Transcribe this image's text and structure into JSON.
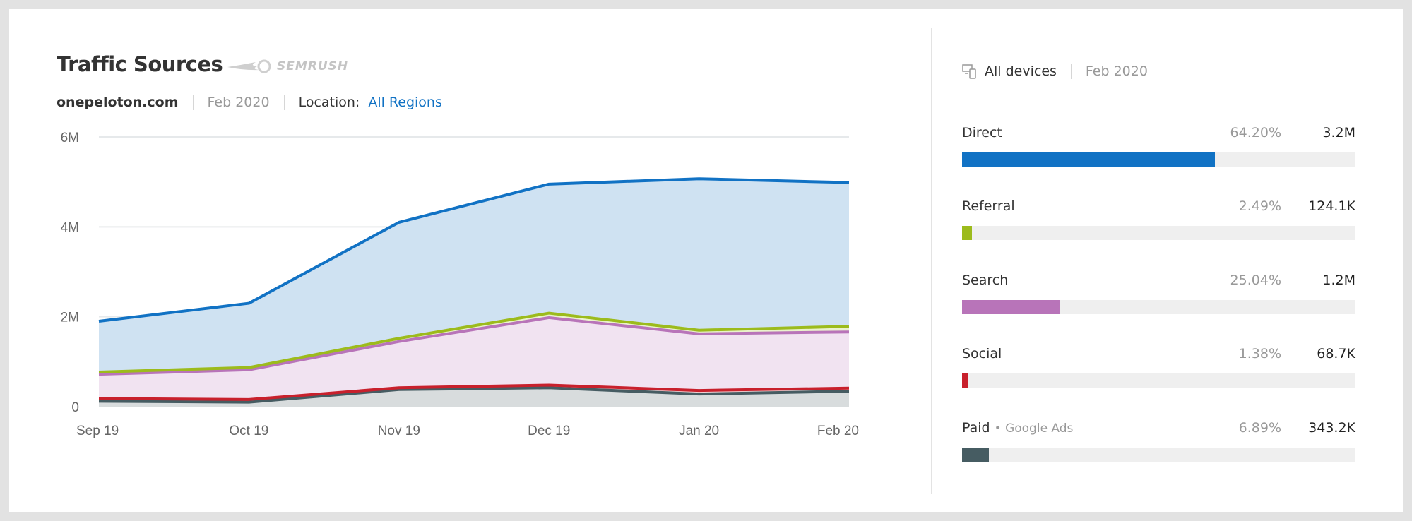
{
  "header": {
    "title": "Traffic Sources",
    "logo_text": "SEMRUSH",
    "domain": "onepeloton.com",
    "date": "Feb 2020",
    "location_label": "Location:",
    "location_value": "All Regions"
  },
  "panel": {
    "device_icon": "devices-icon",
    "devices": "All devices",
    "date": "Feb 2020",
    "rows": [
      {
        "label": "Direct",
        "extra": "",
        "percent": "64.20%",
        "value": "3.2M",
        "share": 64.2,
        "color": "#1172c4"
      },
      {
        "label": "Referral",
        "extra": "",
        "percent": "2.49%",
        "value": "124.1K",
        "share": 2.49,
        "color": "#9cbb1c"
      },
      {
        "label": "Search",
        "extra": "",
        "percent": "25.04%",
        "value": "1.2M",
        "share": 25.04,
        "color": "#b874b9"
      },
      {
        "label": "Social",
        "extra": "",
        "percent": "1.38%",
        "value": "68.7K",
        "share": 1.38,
        "color": "#c8202c"
      },
      {
        "label": "Paid",
        "extra": "Google Ads",
        "percent": "6.89%",
        "value": "343.2K",
        "share": 6.89,
        "color": "#465c62"
      }
    ]
  },
  "chart_data": {
    "type": "area",
    "stacked": true,
    "categories": [
      "Sep 19",
      "Oct 19",
      "Nov 19",
      "Dec 19",
      "Jan 20",
      "Feb 20"
    ],
    "yticks": [
      "0",
      "2M",
      "4M",
      "6M"
    ],
    "ylim": [
      0,
      6000000
    ],
    "grid": true,
    "series": [
      {
        "name": "Paid",
        "color": "#465c62",
        "fill": "#d8dcdd",
        "values": [
          120000,
          100000,
          380000,
          420000,
          280000,
          343200
        ]
      },
      {
        "name": "Social",
        "color": "#c8202c",
        "fill": "#f3d3d5",
        "values": [
          60000,
          60000,
          40000,
          60000,
          80000,
          68700
        ]
      },
      {
        "name": "Search",
        "color": "#b874b9",
        "fill": "#f1e3f1",
        "values": [
          540000,
          660000,
          1030000,
          1500000,
          1260000,
          1250000
        ]
      },
      {
        "name": "Referral",
        "color": "#9cbb1c",
        "fill": "#eaf2cc",
        "values": [
          50000,
          50000,
          70000,
          100000,
          80000,
          124100
        ]
      },
      {
        "name": "Direct",
        "color": "#1172c4",
        "fill": "#cfe2f2",
        "values": [
          1130000,
          1430000,
          2580000,
          2870000,
          3370000,
          3200000
        ]
      }
    ]
  }
}
